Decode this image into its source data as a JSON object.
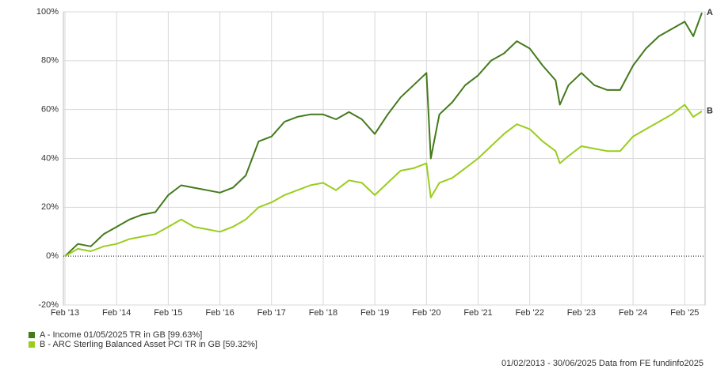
{
  "chart_data": {
    "type": "line",
    "x": [
      "2013-02",
      "2013-05",
      "2013-08",
      "2013-11",
      "2014-02",
      "2014-05",
      "2014-08",
      "2014-11",
      "2015-02",
      "2015-05",
      "2015-08",
      "2015-11",
      "2016-02",
      "2016-05",
      "2016-08",
      "2016-11",
      "2017-02",
      "2017-05",
      "2017-08",
      "2017-11",
      "2018-02",
      "2018-05",
      "2018-08",
      "2018-11",
      "2019-02",
      "2019-05",
      "2019-08",
      "2019-11",
      "2020-02",
      "2020-03",
      "2020-05",
      "2020-08",
      "2020-11",
      "2021-02",
      "2021-05",
      "2021-08",
      "2021-11",
      "2022-02",
      "2022-05",
      "2022-08",
      "2022-09",
      "2022-11",
      "2023-02",
      "2023-05",
      "2023-08",
      "2023-11",
      "2024-02",
      "2024-05",
      "2024-08",
      "2024-11",
      "2025-02",
      "2025-04",
      "2025-06"
    ],
    "series": [
      {
        "name": "A - Income 01/05/2025 TR in GB [99.63%]",
        "end_label": "A",
        "color": "#437a1b",
        "values": [
          0,
          5,
          4,
          9,
          12,
          15,
          17,
          18,
          25,
          29,
          28,
          27,
          26,
          28,
          33,
          47,
          49,
          55,
          57,
          58,
          58,
          56,
          59,
          56,
          50,
          58,
          65,
          70,
          75,
          40,
          58,
          63,
          70,
          74,
          80,
          83,
          88,
          85,
          78,
          72,
          62,
          70,
          75,
          70,
          68,
          68,
          78,
          85,
          90,
          93,
          96,
          90,
          99.63
        ]
      },
      {
        "name": "B - ARC Sterling Balanced Asset PCI TR in GB [59.32%]",
        "end_label": "B",
        "color": "#9acd1e",
        "values": [
          0,
          3,
          2,
          4,
          5,
          7,
          8,
          9,
          12,
          15,
          12,
          11,
          10,
          12,
          15,
          20,
          22,
          25,
          27,
          29,
          30,
          27,
          31,
          30,
          25,
          30,
          35,
          36,
          38,
          24,
          30,
          32,
          36,
          40,
          45,
          50,
          54,
          52,
          47,
          43,
          38,
          41,
          45,
          44,
          43,
          43,
          49,
          52,
          55,
          58,
          62,
          57,
          59.32
        ]
      }
    ],
    "xlim": [
      "2013-02",
      "2025-06"
    ],
    "xticks": [
      {
        "value": "2013-02",
        "label": "Feb '13"
      },
      {
        "value": "2014-02",
        "label": "Feb '14"
      },
      {
        "value": "2015-02",
        "label": "Feb '15"
      },
      {
        "value": "2016-02",
        "label": "Feb '16"
      },
      {
        "value": "2017-02",
        "label": "Feb '17"
      },
      {
        "value": "2018-02",
        "label": "Feb '18"
      },
      {
        "value": "2019-02",
        "label": "Feb '19"
      },
      {
        "value": "2020-02",
        "label": "Feb '20"
      },
      {
        "value": "2021-02",
        "label": "Feb '21"
      },
      {
        "value": "2022-02",
        "label": "Feb '22"
      },
      {
        "value": "2023-02",
        "label": "Feb '23"
      },
      {
        "value": "2024-02",
        "label": "Feb '24"
      },
      {
        "value": "2025-02",
        "label": "Feb '25"
      }
    ],
    "ylim": [
      -20,
      100
    ],
    "yticks": [
      {
        "value": -20,
        "label": "-20%"
      },
      {
        "value": 0,
        "label": "0%"
      },
      {
        "value": 20,
        "label": "20%"
      },
      {
        "value": 40,
        "label": "40%"
      },
      {
        "value": 60,
        "label": "60%"
      },
      {
        "value": 80,
        "label": "80%"
      },
      {
        "value": 100,
        "label": "100%"
      }
    ],
    "grid": true,
    "footer": "01/02/2013 - 30/06/2025 Data from FE fundinfo2025"
  }
}
